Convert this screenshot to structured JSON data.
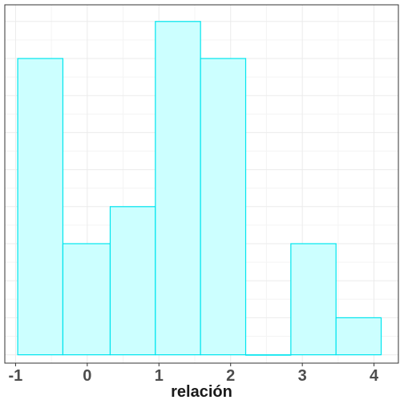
{
  "chart_data": {
    "type": "bar",
    "subtype": "histogram",
    "xlabel": "relación",
    "ylabel": "",
    "bins": [
      {
        "x0": -0.97,
        "x1": -0.34,
        "count": 8
      },
      {
        "x0": -0.34,
        "x1": 0.32,
        "count": 3
      },
      {
        "x0": 0.32,
        "x1": 0.95,
        "count": 4
      },
      {
        "x0": 0.95,
        "x1": 1.58,
        "count": 9
      },
      {
        "x0": 1.58,
        "x1": 2.21,
        "count": 8
      },
      {
        "x0": 2.21,
        "x1": 2.84,
        "count": 0
      },
      {
        "x0": 2.84,
        "x1": 3.47,
        "count": 3
      },
      {
        "x0": 3.47,
        "x1": 4.1,
        "count": 1
      }
    ],
    "xticks": [
      -1,
      0,
      1,
      2,
      3,
      4
    ],
    "xtick_labels": [
      "-1",
      "0",
      "1",
      "2",
      "3",
      "4"
    ],
    "xlim": [
      -1.15,
      4.34
    ],
    "ylim": [
      -0.225,
      9.45
    ],
    "y_gridlines": [
      0,
      1,
      2,
      3,
      4,
      5,
      6,
      7,
      8,
      9
    ],
    "grid": true,
    "colors": {
      "bar_fill": "#ccffff",
      "bar_stroke": "#00e5ee",
      "grid_major": "#ebebeb",
      "grid_minor": "#f4f4f4",
      "panel_border": "#333333"
    }
  }
}
